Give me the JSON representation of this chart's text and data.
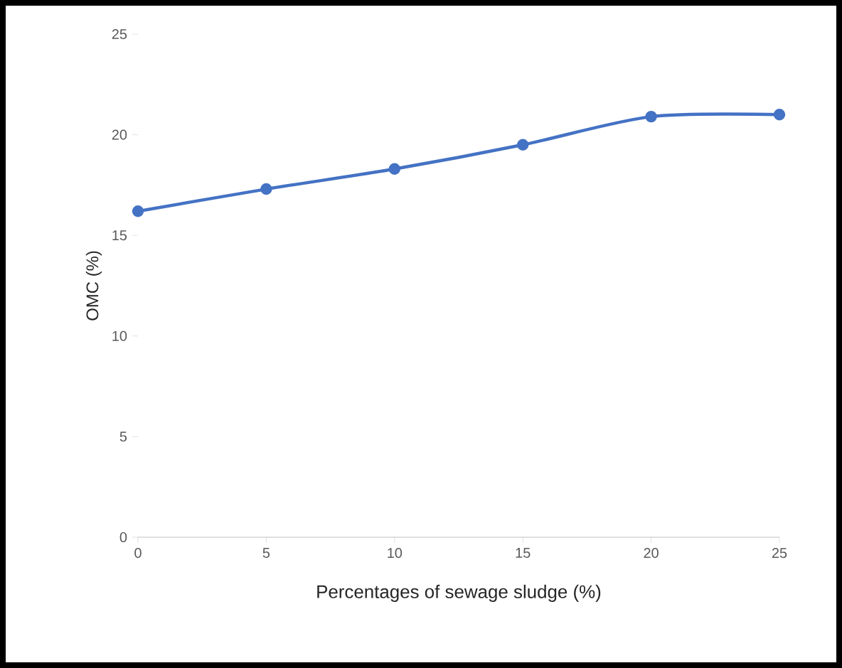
{
  "chart_data": {
    "type": "line",
    "xlabel": "Percentages of sewage sludge (%)",
    "ylabel": "OMC (%)",
    "x": [
      0,
      5,
      10,
      15,
      20,
      25
    ],
    "series": [
      {
        "color": "#4472c4",
        "values": [
          16.2,
          17.3,
          18.3,
          19.5,
          20.9,
          21.0
        ]
      }
    ],
    "xlim": [
      0,
      25
    ],
    "ylim": [
      0,
      25
    ],
    "xticks": [
      0,
      5,
      10,
      15,
      20,
      25
    ],
    "yticks": [
      0,
      5,
      10,
      15,
      20,
      25
    ],
    "marker": "circle",
    "line_style": "solid"
  }
}
